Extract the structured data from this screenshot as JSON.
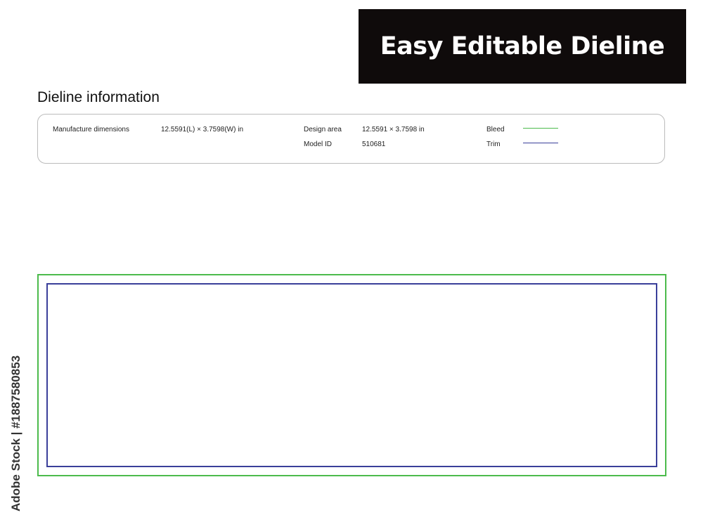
{
  "banner": "Easy Editable  Dieline",
  "title": "Dieline information",
  "info": {
    "manufacture_label": "Manufacture dimensions",
    "manufacture_value": "12.5591(L) × 3.7598(W) in",
    "design_label": "Design area",
    "design_value": "12.5591 × 3.7598 in",
    "model_label": "Model ID",
    "model_value": "510681",
    "bleed_label": "Bleed",
    "trim_label": "Trim"
  },
  "colors": {
    "bleed": "#4cbb4c",
    "trim": "#3a3f9a"
  },
  "credit": "Adobe Stock | #1887580853"
}
